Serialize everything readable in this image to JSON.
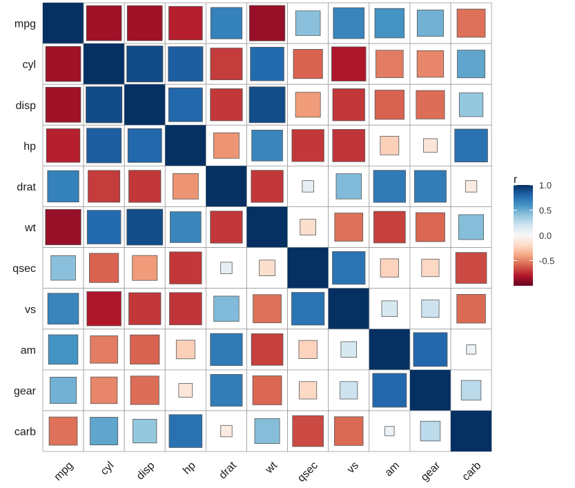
{
  "chart_data": {
    "type": "heatmap",
    "method": "square",
    "variables": [
      "mpg",
      "cyl",
      "disp",
      "hp",
      "drat",
      "wt",
      "qsec",
      "vs",
      "am",
      "gear",
      "carb"
    ],
    "matrix": [
      [
        1.0,
        -0.85,
        -0.85,
        -0.78,
        0.68,
        -0.87,
        0.42,
        0.66,
        0.6,
        0.48,
        -0.55
      ],
      [
        -0.85,
        1.0,
        0.9,
        0.83,
        -0.7,
        0.78,
        -0.59,
        -0.81,
        -0.52,
        -0.49,
        0.53
      ],
      [
        -0.85,
        0.9,
        1.0,
        0.79,
        -0.71,
        0.89,
        -0.43,
        -0.71,
        -0.59,
        -0.56,
        0.39
      ],
      [
        -0.78,
        0.83,
        0.79,
        1.0,
        -0.45,
        0.66,
        -0.71,
        -0.72,
        -0.24,
        -0.13,
        0.75
      ],
      [
        0.68,
        -0.7,
        -0.71,
        -0.45,
        1.0,
        -0.71,
        0.09,
        0.44,
        0.71,
        0.7,
        -0.09
      ],
      [
        -0.87,
        0.78,
        0.89,
        0.66,
        -0.71,
        1.0,
        -0.17,
        -0.55,
        -0.69,
        -0.58,
        0.43
      ],
      [
        0.42,
        -0.59,
        -0.43,
        -0.71,
        0.09,
        -0.17,
        1.0,
        0.74,
        -0.23,
        -0.21,
        -0.66
      ],
      [
        0.66,
        -0.81,
        -0.71,
        -0.72,
        0.44,
        -0.55,
        0.74,
        1.0,
        0.17,
        0.21,
        -0.57
      ],
      [
        0.6,
        -0.52,
        -0.59,
        -0.24,
        0.71,
        -0.69,
        -0.23,
        0.17,
        1.0,
        0.79,
        0.06
      ],
      [
        0.48,
        -0.49,
        -0.56,
        -0.13,
        0.7,
        -0.58,
        -0.21,
        0.21,
        0.79,
        1.0,
        0.27
      ],
      [
        -0.55,
        0.53,
        0.39,
        0.75,
        -0.09,
        0.43,
        -0.66,
        -0.57,
        0.06,
        0.27,
        1.0
      ]
    ],
    "legend": {
      "title": "r",
      "ticks": [
        1.0,
        0.5,
        0.0,
        -0.5
      ],
      "tick_labels": [
        "1.0",
        "0.5",
        "0.0",
        "-0.5"
      ],
      "range": [
        -1,
        1
      ],
      "placement": "right"
    },
    "colors": {
      "low": "#a50f25",
      "mid": "#f7f7f7",
      "high": "#053061",
      "scale": [
        "#67001f",
        "#b2182b",
        "#d6604d",
        "#f4a582",
        "#fddbc7",
        "#f7f7f7",
        "#d1e5f0",
        "#92c5de",
        "#4393c3",
        "#2166ac",
        "#053061"
      ]
    }
  }
}
